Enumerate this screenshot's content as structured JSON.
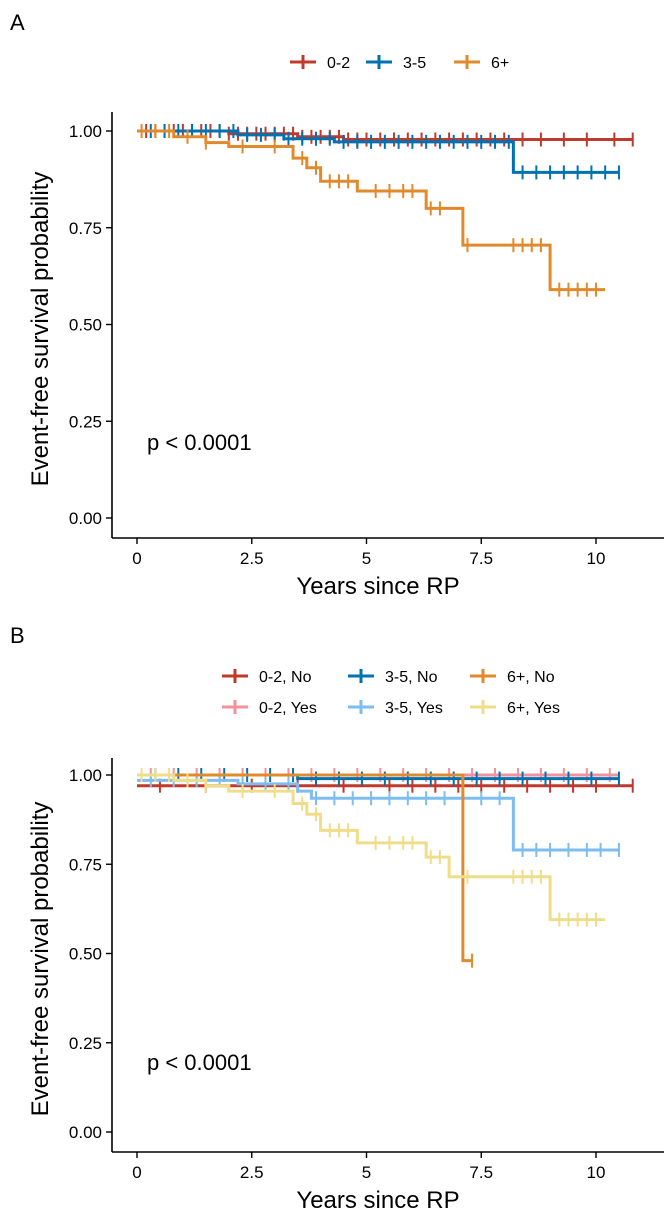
{
  "chart_data": [
    {
      "panel": "A",
      "type": "line",
      "xlabel": "Years since RP",
      "ylabel": "Event-free survival probability",
      "xlim": [
        -1,
        11.5
      ],
      "ylim": [
        0,
        1.05
      ],
      "xticks": [
        0,
        2.5,
        5,
        7.5,
        10
      ],
      "xtick_labels": [
        "0",
        "2.5",
        "5",
        "7.5",
        "10"
      ],
      "yticks": [
        0,
        0.25,
        0.5,
        0.75,
        1
      ],
      "ytick_labels": [
        "0.00",
        "0.25",
        "0.50",
        "0.75",
        "1.00"
      ],
      "annotation": "p < 0.0001",
      "legend": "top",
      "series": [
        {
          "name": "0-2",
          "color": "#c0392b",
          "steps": [
            [
              0,
              1.0
            ],
            [
              2.0,
              0.993
            ],
            [
              3.5,
              0.985
            ],
            [
              4.5,
              0.978
            ],
            [
              10.8,
              0.978
            ]
          ],
          "censor": [
            0.2,
            0.4,
            0.6,
            0.8,
            1.0,
            1.2,
            1.4,
            1.6,
            1.8,
            2.0,
            2.2,
            2.4,
            2.6,
            2.8,
            3.0,
            3.2,
            3.4,
            3.6,
            3.8,
            4.0,
            4.2,
            4.4,
            4.6,
            4.8,
            5.0,
            5.3,
            5.6,
            5.9,
            6.2,
            6.5,
            6.8,
            7.1,
            7.4,
            7.7,
            8.0,
            8.4,
            8.8,
            9.3,
            9.8,
            10.4,
            10.8
          ]
        },
        {
          "name": "3-5",
          "color": "#0072b2",
          "steps": [
            [
              0,
              1.0
            ],
            [
              2.2,
              0.99
            ],
            [
              3.2,
              0.98
            ],
            [
              4.3,
              0.972
            ],
            [
              8.2,
              0.972
            ],
            [
              8.2,
              0.893
            ],
            [
              10.5,
              0.893
            ]
          ],
          "censor": [
            0.3,
            0.6,
            0.9,
            1.2,
            1.5,
            1.8,
            2.1,
            2.4,
            2.7,
            3.0,
            3.3,
            3.6,
            3.9,
            4.2,
            4.5,
            4.8,
            5.1,
            5.4,
            5.7,
            6.0,
            6.3,
            6.6,
            6.9,
            7.2,
            7.5,
            7.8,
            8.1,
            8.4,
            8.7,
            9.0,
            9.3,
            9.6,
            9.9,
            10.2,
            10.5
          ]
        },
        {
          "name": "6+",
          "color": "#e08a2c",
          "steps": [
            [
              0,
              1.0
            ],
            [
              0.8,
              0.985
            ],
            [
              1.5,
              0.97
            ],
            [
              2.0,
              0.96
            ],
            [
              3.4,
              0.93
            ],
            [
              3.7,
              0.905
            ],
            [
              4.0,
              0.87
            ],
            [
              4.8,
              0.845
            ],
            [
              6.3,
              0.8
            ],
            [
              7.1,
              0.705
            ],
            [
              9.0,
              0.705
            ],
            [
              9.0,
              0.59
            ],
            [
              10.2,
              0.59
            ]
          ],
          "censor": [
            0.1,
            0.4,
            0.7,
            1.1,
            1.5,
            2.3,
            3.0,
            3.6,
            3.9,
            4.2,
            4.4,
            4.6,
            5.2,
            5.5,
            5.8,
            6.0,
            6.4,
            6.6,
            7.2,
            8.2,
            8.4,
            8.6,
            8.8,
            9.2,
            9.4,
            9.6,
            9.8,
            10.0
          ]
        }
      ]
    },
    {
      "panel": "B",
      "type": "line",
      "xlabel": "Years since RP",
      "ylabel": "Event-free survival probability",
      "xlim": [
        -1,
        11.5
      ],
      "ylim": [
        0,
        1.05
      ],
      "xticks": [
        0,
        2.5,
        5,
        7.5,
        10
      ],
      "xtick_labels": [
        "0",
        "2.5",
        "5",
        "7.5",
        "10"
      ],
      "yticks": [
        0,
        0.25,
        0.5,
        0.75,
        1
      ],
      "ytick_labels": [
        "0.00",
        "0.25",
        "0.50",
        "0.75",
        "1.00"
      ],
      "annotation": "p < 0.0001",
      "legend": "top",
      "series": [
        {
          "name": "0-2, No",
          "color": "#c0392b",
          "steps": [
            [
              0,
              0.97
            ],
            [
              10.8,
              0.97
            ]
          ],
          "censor": [
            0.5,
            1.5,
            2.5,
            3.5,
            4.5,
            5.5,
            6.0,
            6.5,
            7.0,
            7.5,
            8.0,
            8.5,
            9.0,
            9.5,
            10.0,
            10.8
          ]
        },
        {
          "name": "0-2, Yes",
          "color": "#f4919a",
          "steps": [
            [
              0,
              1.0
            ],
            [
              10.5,
              1.0
            ]
          ],
          "censor": [
            0.3,
            0.8,
            1.3,
            1.8,
            2.3,
            2.8,
            3.3,
            3.8,
            4.3,
            4.8,
            5.3,
            5.8,
            6.3,
            6.8,
            7.3,
            7.8,
            8.3,
            8.8,
            9.3,
            9.8,
            10.3
          ]
        },
        {
          "name": "3-5, No",
          "color": "#0072b2",
          "steps": [
            [
              0,
              1.0
            ],
            [
              3.5,
              0.99
            ],
            [
              10.5,
              0.99
            ]
          ],
          "censor": [
            0.4,
            0.9,
            1.4,
            1.9,
            2.4,
            2.9,
            3.4,
            3.9,
            4.4,
            4.9,
            5.4,
            5.9,
            6.4,
            6.9,
            7.4,
            7.9,
            8.4,
            8.9,
            9.4,
            9.9,
            10.5
          ]
        },
        {
          "name": "3-5, Yes",
          "color": "#7dbdf0",
          "steps": [
            [
              0,
              0.985
            ],
            [
              2.2,
              0.975
            ],
            [
              3.5,
              0.955
            ],
            [
              3.8,
              0.935
            ],
            [
              8.2,
              0.935
            ],
            [
              8.2,
              0.79
            ],
            [
              10.5,
              0.79
            ]
          ],
          "censor": [
            0.3,
            0.8,
            1.3,
            1.8,
            2.3,
            2.8,
            3.3,
            3.9,
            4.3,
            4.7,
            5.1,
            5.5,
            5.9,
            6.3,
            6.7,
            7.1,
            7.5,
            7.9,
            8.4,
            8.7,
            9.0,
            9.4,
            9.8,
            10.1,
            10.5
          ]
        },
        {
          "name": "6+, No",
          "color": "#e08a2c",
          "steps": [
            [
              0,
              1.0
            ],
            [
              7.1,
              1.0
            ],
            [
              7.1,
              0.48
            ],
            [
              7.3,
              0.48
            ]
          ],
          "censor": [
            7.3
          ]
        },
        {
          "name": "6+, Yes",
          "color": "#f0dd8a",
          "steps": [
            [
              0,
              1.0
            ],
            [
              0.8,
              0.985
            ],
            [
              1.5,
              0.97
            ],
            [
              2.0,
              0.955
            ],
            [
              3.4,
              0.92
            ],
            [
              3.7,
              0.89
            ],
            [
              4.0,
              0.845
            ],
            [
              4.8,
              0.81
            ],
            [
              6.3,
              0.77
            ],
            [
              6.8,
              0.715
            ],
            [
              9.0,
              0.715
            ],
            [
              9.0,
              0.595
            ],
            [
              10.2,
              0.595
            ]
          ],
          "censor": [
            0.1,
            0.4,
            0.7,
            1.1,
            1.5,
            2.3,
            3.0,
            3.6,
            3.9,
            4.2,
            4.4,
            4.6,
            5.2,
            5.5,
            5.8,
            6.0,
            6.4,
            6.6,
            7.2,
            8.2,
            8.4,
            8.6,
            8.8,
            9.2,
            9.4,
            9.6,
            9.8,
            10.0
          ]
        }
      ]
    }
  ]
}
